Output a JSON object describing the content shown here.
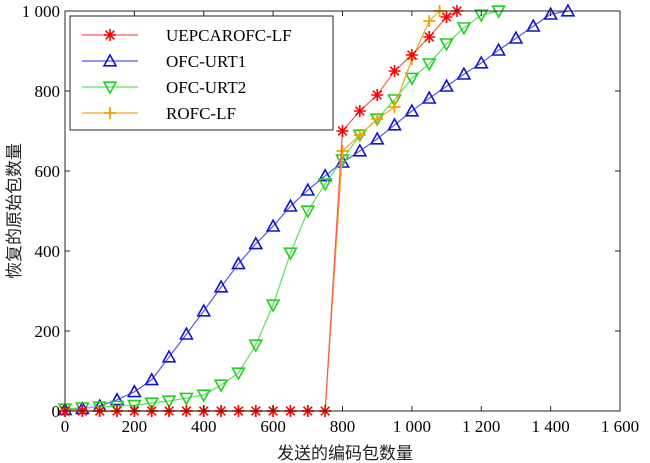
{
  "chart_data": {
    "type": "line",
    "xlabel": "发送的编码包数量",
    "ylabel": "恢复的原始包数量",
    "xlim": [
      0,
      1600
    ],
    "ylim": [
      0,
      1000
    ],
    "x_ticks": [
      0,
      200,
      400,
      600,
      800,
      1000,
      1200,
      1400,
      1600
    ],
    "x_tick_labels": [
      "0",
      "200",
      "400",
      "600",
      "800",
      "1 000",
      "1 200",
      "1 400",
      "1 600"
    ],
    "y_ticks": [
      0,
      200,
      400,
      600,
      800,
      1000
    ],
    "y_tick_labels": [
      "0",
      "200",
      "400",
      "600",
      "800",
      "1 000"
    ],
    "grid": false,
    "legend_position": "top-left",
    "series": [
      {
        "name": "UEPCAROFC-LF",
        "color": "#ff5a4f",
        "marker_color": "#ff0000",
        "marker": "asterisk",
        "points": [
          [
            0,
            0
          ],
          [
            50,
            0
          ],
          [
            100,
            0
          ],
          [
            150,
            0
          ],
          [
            200,
            0
          ],
          [
            250,
            0
          ],
          [
            300,
            0
          ],
          [
            350,
            0
          ],
          [
            400,
            0
          ],
          [
            450,
            0
          ],
          [
            500,
            0
          ],
          [
            550,
            0
          ],
          [
            600,
            0
          ],
          [
            650,
            0
          ],
          [
            700,
            0
          ],
          [
            750,
            0
          ],
          [
            800,
            700
          ],
          [
            850,
            750
          ],
          [
            900,
            790
          ],
          [
            950,
            850
          ],
          [
            1000,
            890
          ],
          [
            1050,
            935
          ],
          [
            1100,
            985
          ],
          [
            1130,
            1000
          ]
        ]
      },
      {
        "name": "OFC-URT1",
        "color": "#5858f0",
        "marker_color": "#1414d0",
        "marker": "triangle-up",
        "points": [
          [
            0,
            3
          ],
          [
            50,
            6
          ],
          [
            100,
            12
          ],
          [
            150,
            28
          ],
          [
            200,
            48
          ],
          [
            250,
            78
          ],
          [
            300,
            135
          ],
          [
            350,
            192
          ],
          [
            400,
            250
          ],
          [
            450,
            310
          ],
          [
            500,
            368
          ],
          [
            550,
            418
          ],
          [
            600,
            462
          ],
          [
            650,
            512
          ],
          [
            700,
            552
          ],
          [
            750,
            588
          ],
          [
            800,
            622
          ],
          [
            850,
            650
          ],
          [
            900,
            680
          ],
          [
            950,
            715
          ],
          [
            1000,
            750
          ],
          [
            1050,
            782
          ],
          [
            1100,
            812
          ],
          [
            1150,
            842
          ],
          [
            1200,
            870
          ],
          [
            1250,
            902
          ],
          [
            1300,
            932
          ],
          [
            1350,
            962
          ],
          [
            1400,
            992
          ],
          [
            1450,
            1000
          ]
        ]
      },
      {
        "name": "OFC-URT2",
        "color": "#5ee05e",
        "marker_color": "#20d020",
        "marker": "triangle-down",
        "points": [
          [
            0,
            5
          ],
          [
            50,
            8
          ],
          [
            100,
            10
          ],
          [
            150,
            12
          ],
          [
            200,
            14
          ],
          [
            250,
            20
          ],
          [
            300,
            25
          ],
          [
            350,
            32
          ],
          [
            400,
            40
          ],
          [
            450,
            65
          ],
          [
            500,
            95
          ],
          [
            550,
            165
          ],
          [
            600,
            265
          ],
          [
            650,
            395
          ],
          [
            700,
            500
          ],
          [
            750,
            568
          ],
          [
            800,
            628
          ],
          [
            850,
            690
          ],
          [
            900,
            730
          ],
          [
            950,
            778
          ],
          [
            1000,
            832
          ],
          [
            1050,
            868
          ],
          [
            1100,
            918
          ],
          [
            1150,
            958
          ],
          [
            1200,
            990
          ],
          [
            1250,
            1000
          ]
        ]
      },
      {
        "name": "ROFC-LF",
        "color": "#f5a623",
        "marker_color": "#f5a000",
        "marker": "plus",
        "points": [
          [
            0,
            0
          ],
          [
            50,
            0
          ],
          [
            100,
            0
          ],
          [
            150,
            0
          ],
          [
            200,
            0
          ],
          [
            250,
            0
          ],
          [
            300,
            0
          ],
          [
            350,
            0
          ],
          [
            400,
            0
          ],
          [
            450,
            0
          ],
          [
            500,
            0
          ],
          [
            550,
            0
          ],
          [
            600,
            0
          ],
          [
            650,
            0
          ],
          [
            700,
            0
          ],
          [
            750,
            0
          ],
          [
            800,
            650
          ],
          [
            850,
            690
          ],
          [
            900,
            730
          ],
          [
            950,
            760
          ],
          [
            1000,
            880
          ],
          [
            1050,
            975
          ],
          [
            1080,
            1000
          ]
        ]
      }
    ]
  }
}
